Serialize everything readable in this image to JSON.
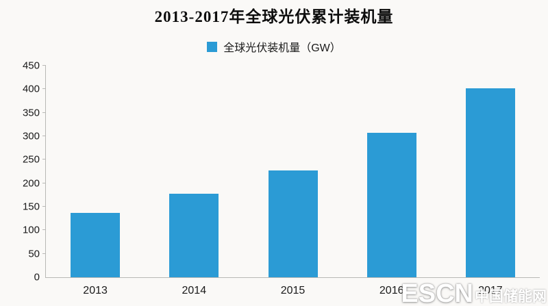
{
  "title": "2013-2017年全球光伏累计装机量",
  "legend": {
    "label": "全球光伏装机量（GW）",
    "color": "#2b9bd5"
  },
  "watermark": {
    "escn": "ESCN",
    "cn": "中国储能网"
  },
  "chart_data": {
    "type": "bar",
    "title": "2013-2017年全球光伏累计装机量",
    "categories": [
      "2013",
      "2014",
      "2015",
      "2016",
      "2017"
    ],
    "values": [
      137,
      178,
      227,
      307,
      402
    ],
    "series_name": "全球光伏装机量（GW）",
    "xlabel": "",
    "ylabel": "",
    "ylim": [
      0,
      450
    ],
    "ytick_step": 50,
    "bar_color": "#2b9bd5",
    "grid": false,
    "legend_position": "top"
  }
}
